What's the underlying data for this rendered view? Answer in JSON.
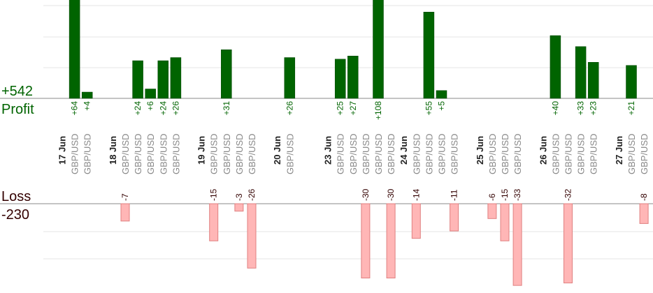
{
  "summary": {
    "profit_total": "+542",
    "profit_label": "Profit",
    "loss_label": "Loss",
    "loss_total": "-230"
  },
  "colors": {
    "profit": "#006400",
    "profit_dark": "#004400",
    "profit_text": "#006400",
    "loss_fill": "#ffb6b6",
    "loss_stroke": "#e08080",
    "loss_text": "#330000",
    "grid": "#e6e6e6",
    "axis": "#888888",
    "pair_text": "#888888",
    "date_text": "#222222"
  },
  "chart_data": {
    "type": "bar",
    "title": "",
    "xlabel": "",
    "ylabel": "",
    "dates": [
      {
        "label": "17 Jun",
        "slot": 0
      },
      {
        "label": "18 Jun",
        "slot": 4
      },
      {
        "label": "19 Jun",
        "slot": 11
      },
      {
        "label": "20 Jun",
        "slot": 17
      },
      {
        "label": "23 Jun",
        "slot": 21
      },
      {
        "label": "24 Jun",
        "slot": 27
      },
      {
        "label": "25 Jun",
        "slot": 33
      },
      {
        "label": "26 Jun",
        "slot": 38
      },
      {
        "label": "27 Jun",
        "slot": 44
      }
    ],
    "trades": [
      {
        "slot": 1,
        "pair": "GBP/USD",
        "value": 64,
        "label": "+64"
      },
      {
        "slot": 2,
        "pair": "GBP/USD",
        "value": 4,
        "label": "+4"
      },
      {
        "slot": 5,
        "pair": "GBP/USD",
        "value": -7,
        "label": "-7"
      },
      {
        "slot": 6,
        "pair": "GBP/USD",
        "value": 24,
        "label": "+24"
      },
      {
        "slot": 7,
        "pair": "GBP/USD",
        "value": 6,
        "label": "+6"
      },
      {
        "slot": 8,
        "pair": "GBP/USD",
        "value": 24,
        "label": "+24"
      },
      {
        "slot": 9,
        "pair": "GBP/USD",
        "value": 26,
        "label": "+26"
      },
      {
        "slot": 12,
        "pair": "GBP/USD",
        "value": -15,
        "label": "-15"
      },
      {
        "slot": 13,
        "pair": "GBP/USD",
        "value": 31,
        "label": "+31"
      },
      {
        "slot": 14,
        "pair": "GBP/USD",
        "value": -3,
        "label": "-3"
      },
      {
        "slot": 15,
        "pair": "GBP/USD",
        "value": -26,
        "label": "-26"
      },
      {
        "slot": 18,
        "pair": "GBP/USD",
        "value": 26,
        "label": "+26"
      },
      {
        "slot": 22,
        "pair": "GBP/USD",
        "value": 25,
        "label": "+25"
      },
      {
        "slot": 23,
        "pair": "GBP/USD",
        "value": 27,
        "label": "+27"
      },
      {
        "slot": 24,
        "pair": "GBP/USD",
        "value": -30,
        "label": "-30"
      },
      {
        "slot": 25,
        "pair": "GBP/USD",
        "value": 108,
        "label": "+108"
      },
      {
        "slot": 26,
        "pair": "GBP/USD",
        "value": -30,
        "label": "-30"
      },
      {
        "slot": 28,
        "pair": "GBP/USD",
        "value": -14,
        "label": "-14"
      },
      {
        "slot": 29,
        "pair": "GBP/USD",
        "value": 55,
        "label": "+55"
      },
      {
        "slot": 30,
        "pair": "GBP/USD",
        "value": 5,
        "label": "+5"
      },
      {
        "slot": 31,
        "pair": "GBP/USD",
        "value": -11,
        "label": "-11"
      },
      {
        "slot": 34,
        "pair": "GBP/USD",
        "value": -6,
        "label": "-6"
      },
      {
        "slot": 35,
        "pair": "GBP/USD",
        "value": -15,
        "label": "-15"
      },
      {
        "slot": 36,
        "pair": "GBP/USD",
        "value": -33,
        "label": "-33"
      },
      {
        "slot": 39,
        "pair": "GBP/USD",
        "value": 40,
        "label": "+40"
      },
      {
        "slot": 40,
        "pair": "GBP/USD",
        "value": -32,
        "label": "-32"
      },
      {
        "slot": 41,
        "pair": "GBP/USD",
        "value": 33,
        "label": "+33"
      },
      {
        "slot": 42,
        "pair": "GBP/USD",
        "value": 23,
        "label": "+23"
      },
      {
        "slot": 45,
        "pair": "GBP/USD",
        "value": 21,
        "label": "+21"
      },
      {
        "slot": 46,
        "pair": "GBP/USD",
        "value": -8,
        "label": "-8"
      }
    ]
  }
}
